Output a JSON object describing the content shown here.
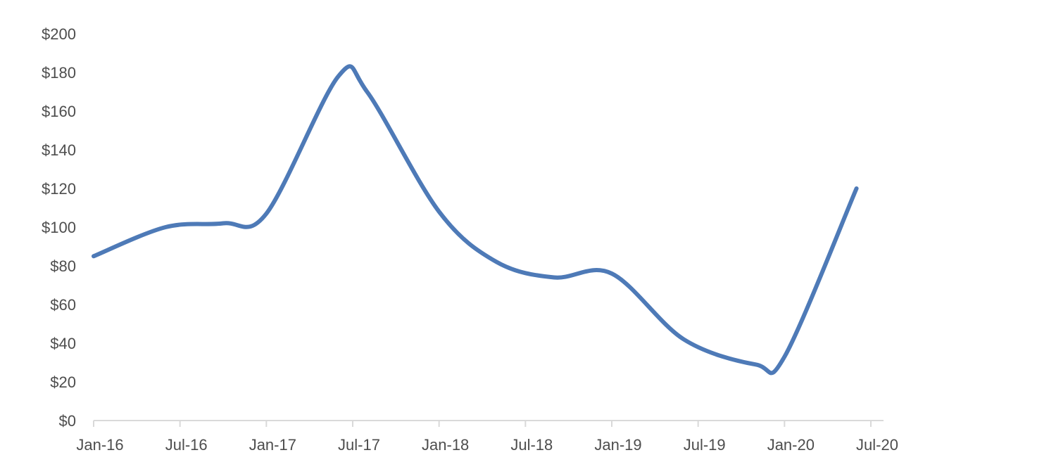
{
  "chart_data": {
    "type": "line",
    "title": "",
    "xlabel": "",
    "ylabel": "",
    "x_tick_labels": [
      "Jan-16",
      "Jul-16",
      "Jan-17",
      "Jul-17",
      "Jan-18",
      "Jul-18",
      "Jan-19",
      "Jul-19",
      "Jan-20",
      "Jul-20"
    ],
    "y_tick_labels": [
      "$0",
      "$20",
      "$40",
      "$60",
      "$80",
      "$100",
      "$120",
      "$140",
      "$160",
      "$180",
      "$200"
    ],
    "ylim": [
      0,
      200
    ],
    "xlim": [
      "2016-01-01",
      "2020-08-01"
    ],
    "grid": false,
    "legend": "none",
    "smooth": true,
    "colors": {
      "series": "#4e7ab7",
      "axis": "#d9d9d9",
      "text": "#4d4d4d"
    },
    "series": [
      {
        "x": [
          "2016-01-01",
          "2016-06-01",
          "2016-10-01",
          "2017-01-01",
          "2017-06-01",
          "2017-08-01",
          "2018-01-01",
          "2018-05-01",
          "2018-09-01",
          "2019-01-01",
          "2019-06-01",
          "2019-11-01",
          "2020-01-01",
          "2020-06-01"
        ],
        "values": [
          85,
          100,
          102,
          107,
          178,
          170,
          108,
          82,
          74,
          76,
          42,
          29,
          33,
          120
        ]
      }
    ]
  }
}
